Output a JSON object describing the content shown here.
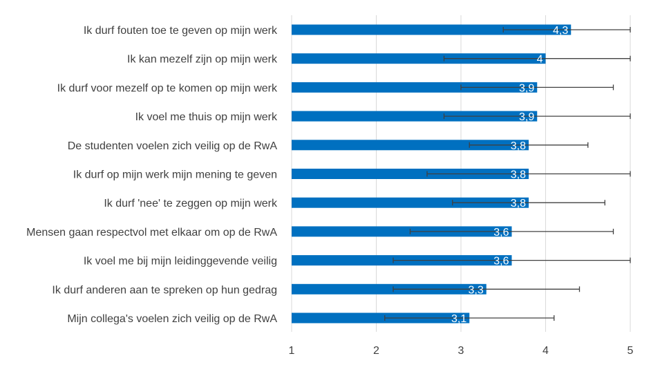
{
  "chart_data": {
    "type": "bar",
    "orientation": "horizontal",
    "title": "",
    "xlabel": "",
    "ylabel": "",
    "xlim": [
      1,
      5
    ],
    "x_ticks": [
      "1",
      "2",
      "3",
      "4",
      "5"
    ],
    "grid": true,
    "bar_color": "#0070c0",
    "error_bar_color": "#404040",
    "categories": [
      "Ik durf fouten toe te geven op mijn werk",
      "Ik kan mezelf zijn op mijn werk",
      "Ik durf voor mezelf op te komen op mijn werk",
      "Ik voel me thuis op mijn werk",
      "De studenten voelen zich veilig op de RwA",
      "Ik durf op mijn werk mijn mening te geven",
      "Ik durf 'nee' te zeggen op mijn werk",
      "Mensen gaan respectvol met elkaar om op de RwA",
      "Ik voel me bij mijn leidinggevende veilig",
      "Ik durf anderen aan te spreken op hun gedrag",
      "Mijn collega's voelen zich veilig op de RwA"
    ],
    "values": [
      4.3,
      4.0,
      3.9,
      3.9,
      3.8,
      3.8,
      3.8,
      3.6,
      3.6,
      3.3,
      3.1
    ],
    "value_labels": [
      "4,3",
      "4",
      "3,9",
      "3,9",
      "3,8",
      "3,8",
      "3,8",
      "3,6",
      "3,6",
      "3,3",
      "3,1"
    ],
    "error_low": [
      3.5,
      2.8,
      3.0,
      2.8,
      3.1,
      2.6,
      2.9,
      2.4,
      2.2,
      2.2,
      2.1
    ],
    "error_high": [
      5.0,
      5.0,
      4.8,
      5.0,
      4.5,
      5.0,
      4.7,
      4.8,
      5.0,
      4.4,
      4.1
    ]
  }
}
